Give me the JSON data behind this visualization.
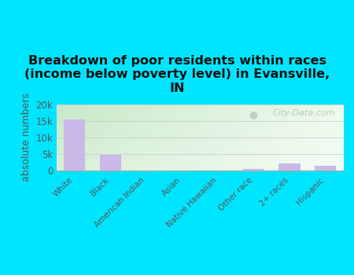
{
  "categories": [
    "White",
    "Black",
    "American Indian",
    "Asian",
    "Native Hawaiian",
    "Other race",
    "2+ races",
    "Hispanic"
  ],
  "values": [
    15500,
    4800,
    100,
    50,
    50,
    500,
    2100,
    1400
  ],
  "bar_color": "#c9b8e8",
  "title": "Breakdown of poor residents within races\n(income below poverty level) in Evansville,\nIN",
  "ylabel": "absolute numbers",
  "ylim": [
    0,
    20000
  ],
  "yticks": [
    0,
    5000,
    10000,
    15000,
    20000
  ],
  "ytick_labels": [
    "0",
    "5k",
    "10k",
    "15k",
    "20k"
  ],
  "background_color": "#00e5ff",
  "watermark": "City-Data.com",
  "title_fontsize": 11.5,
  "ylabel_fontsize": 9,
  "grad_top_left": "#c8e6c9",
  "grad_top_right": "#f0faf0",
  "grad_bottom": "#e8f5e9"
}
